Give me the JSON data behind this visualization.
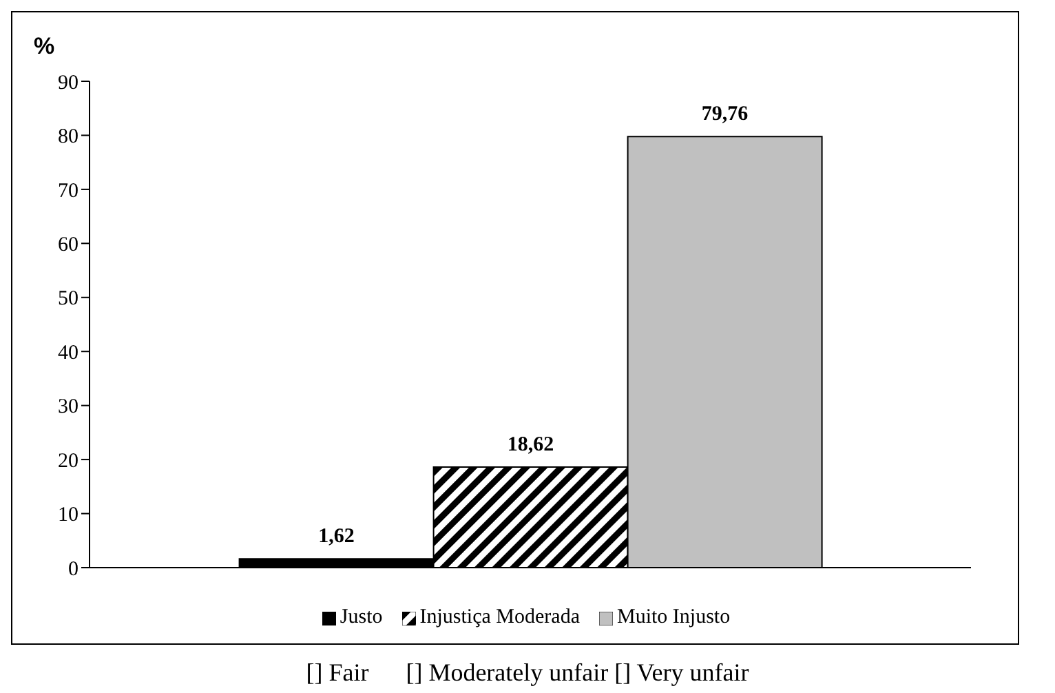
{
  "chart_data": {
    "type": "bar",
    "ylabel": "%",
    "categories": [
      null
    ],
    "series": [
      {
        "name": "Justo",
        "color": "#000000",
        "values": [
          1.62
        ],
        "value_labels": [
          "1,62"
        ]
      },
      {
        "name": "Injustiça Moderada",
        "color": "#000000",
        "values": [
          18.62
        ],
        "value_labels": [
          "18,62"
        ]
      },
      {
        "name": "Muito Injusto",
        "color": "#c0c0c0",
        "values": [
          79.76
        ],
        "value_labels": [
          "79,76"
        ]
      }
    ],
    "ylim": [
      0,
      90
    ],
    "yticks": [
      0,
      10,
      20,
      30,
      40,
      50,
      60,
      70,
      80,
      90
    ],
    "grid": false,
    "legend": "bottom",
    "annotations": [
      "[] Fair      [] Moderately unfair [] Very unfair"
    ]
  }
}
